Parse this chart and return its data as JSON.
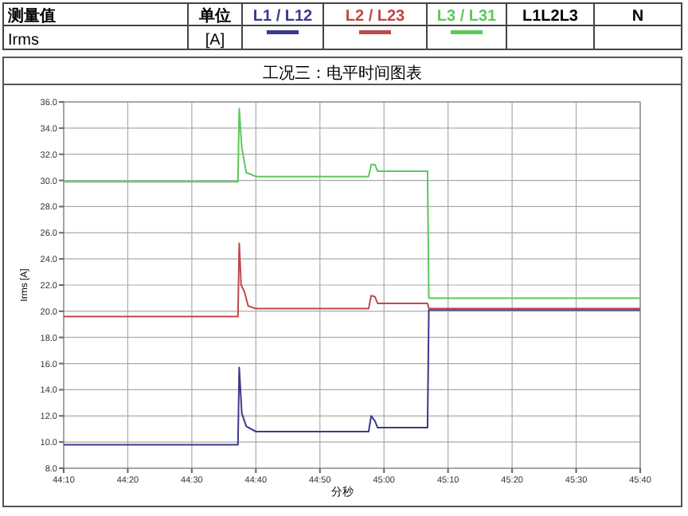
{
  "chart_data": {
    "type": "line",
    "title": "工况三：电平时间图表",
    "xlabel": "分秒",
    "ylabel": "Irms [A]",
    "annotations": [
      "测量值",
      "单位",
      "L1L2L3",
      "N",
      "Irms",
      "[A]"
    ],
    "xlim": [
      2650,
      2740
    ],
    "xticks": [
      {
        "value": 2650,
        "label": "44:10"
      },
      {
        "value": 2660,
        "label": "44:20"
      },
      {
        "value": 2670,
        "label": "44:30"
      },
      {
        "value": 2680,
        "label": "44:40"
      },
      {
        "value": 2690,
        "label": "44:50"
      },
      {
        "value": 2700,
        "label": "45:00"
      },
      {
        "value": 2710,
        "label": "45:10"
      },
      {
        "value": 2720,
        "label": "45:20"
      },
      {
        "value": 2730,
        "label": "45:30"
      },
      {
        "value": 2740,
        "label": "45:40"
      }
    ],
    "ylim": [
      8,
      36
    ],
    "yticks": [
      {
        "value": 8,
        "label": "8.0"
      },
      {
        "value": 10,
        "label": "10.0"
      },
      {
        "value": 12,
        "label": "12.0"
      },
      {
        "value": 14,
        "label": "14.0"
      },
      {
        "value": 16,
        "label": "16.0"
      },
      {
        "value": 18,
        "label": "18.0"
      },
      {
        "value": 20,
        "label": "20.0"
      },
      {
        "value": 22,
        "label": "22.0"
      },
      {
        "value": 24,
        "label": "24.0"
      },
      {
        "value": 26,
        "label": "26.0"
      },
      {
        "value": 28,
        "label": "28.0"
      },
      {
        "value": 30,
        "label": "30.0"
      },
      {
        "value": 32,
        "label": "32.0"
      },
      {
        "value": 34,
        "label": "34.0"
      },
      {
        "value": 36,
        "label": "36.0"
      }
    ],
    "grid": true,
    "legend": "top",
    "marker": "none",
    "line_style": "solid",
    "series": [
      {
        "name": "L1 / L12",
        "color": "#3a3a8c",
        "x": [
          2650,
          2677.2,
          2677.4,
          2677.8,
          2678.5,
          2680,
          2697.6,
          2698,
          2698.6,
          2699,
          2706.8,
          2707,
          2740
        ],
        "values": [
          9.8,
          9.8,
          15.7,
          12.2,
          11.2,
          10.8,
          10.8,
          12.0,
          11.6,
          11.1,
          11.1,
          20.1,
          20.1
        ]
      },
      {
        "name": "L2 / L23",
        "color": "#c04848",
        "x": [
          2650,
          2677.2,
          2677.4,
          2677.7,
          2678.2,
          2678.8,
          2680,
          2697.6,
          2698,
          2698.6,
          2699,
          2706.8,
          2707,
          2740
        ],
        "values": [
          19.6,
          19.6,
          25.2,
          22,
          21.5,
          20.4,
          20.2,
          20.2,
          21.2,
          21.1,
          20.6,
          20.6,
          20.2,
          20.2
        ]
      },
      {
        "name": "L3 / L31",
        "color": "#5cc85c",
        "x": [
          2650,
          2677.2,
          2677.4,
          2677.8,
          2678.5,
          2680,
          2697.6,
          2698,
          2698.6,
          2699,
          2706.8,
          2707,
          2740
        ],
        "values": [
          29.9,
          29.9,
          35.5,
          32.5,
          30.6,
          30.3,
          30.3,
          31.2,
          31.2,
          30.7,
          30.7,
          21.0,
          21.0
        ]
      }
    ]
  }
}
